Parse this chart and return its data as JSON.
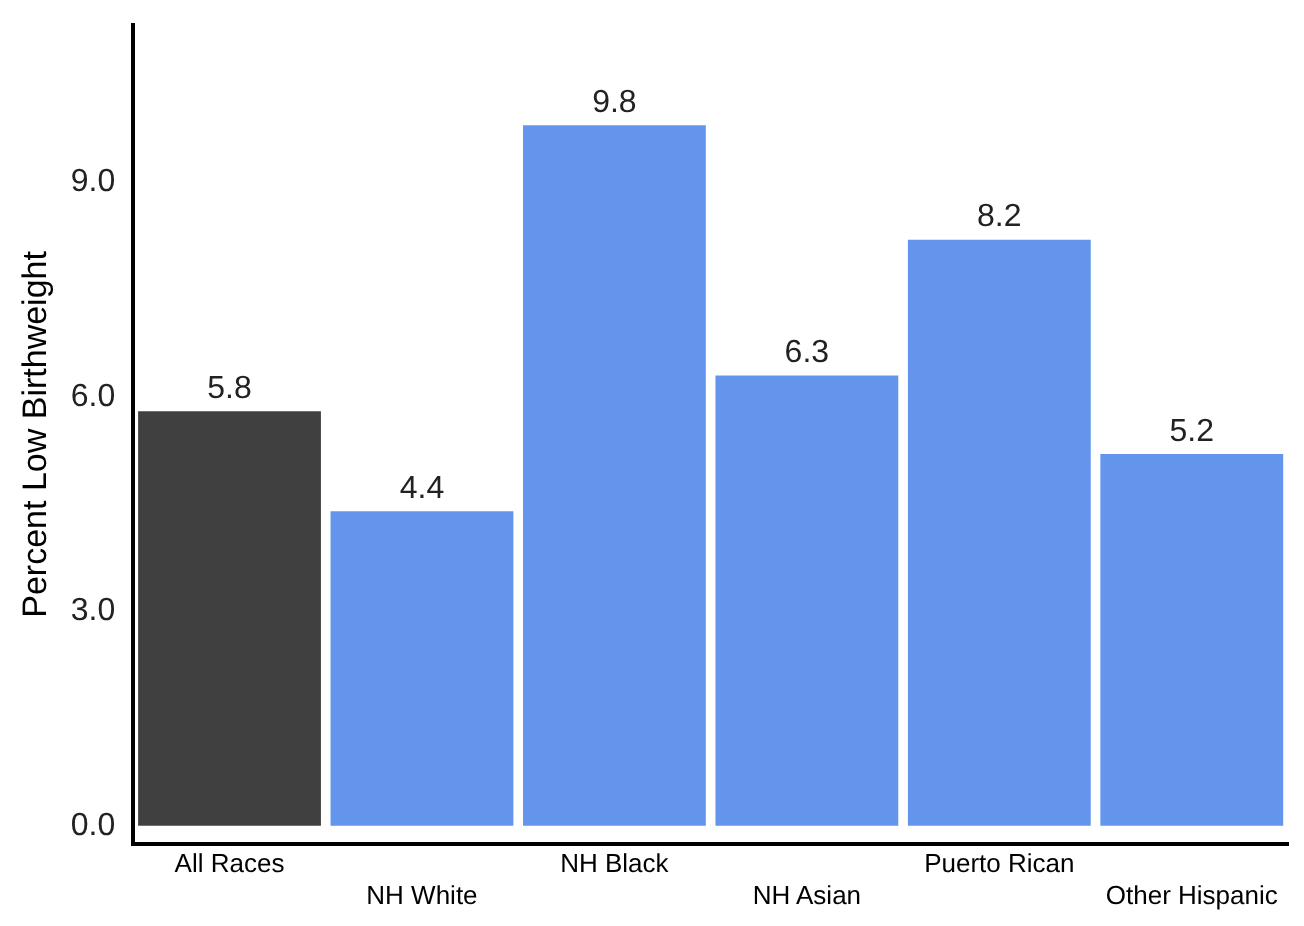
{
  "chart_data": {
    "type": "bar",
    "ylabel": "Percent Low Birthweight",
    "categories": [
      "All Races",
      "NH White",
      "NH Black",
      "NH Asian",
      "Puerto Rican",
      "Other Hispanic"
    ],
    "values": [
      5.8,
      4.4,
      9.8,
      6.3,
      8.2,
      5.2
    ],
    "colors": [
      "#404040",
      "#6495ed",
      "#6495ed",
      "#6495ed",
      "#6495ed",
      "#6495ed"
    ],
    "ylim": [
      -0.25,
      11.2
    ],
    "yticks": [
      {
        "value": 0,
        "label": "0.0"
      },
      {
        "value": 3,
        "label": "3.0"
      },
      {
        "value": 6,
        "label": "6.0"
      },
      {
        "value": 9,
        "label": "9.0"
      }
    ],
    "data_labels": true,
    "grid": false,
    "legend": false
  }
}
